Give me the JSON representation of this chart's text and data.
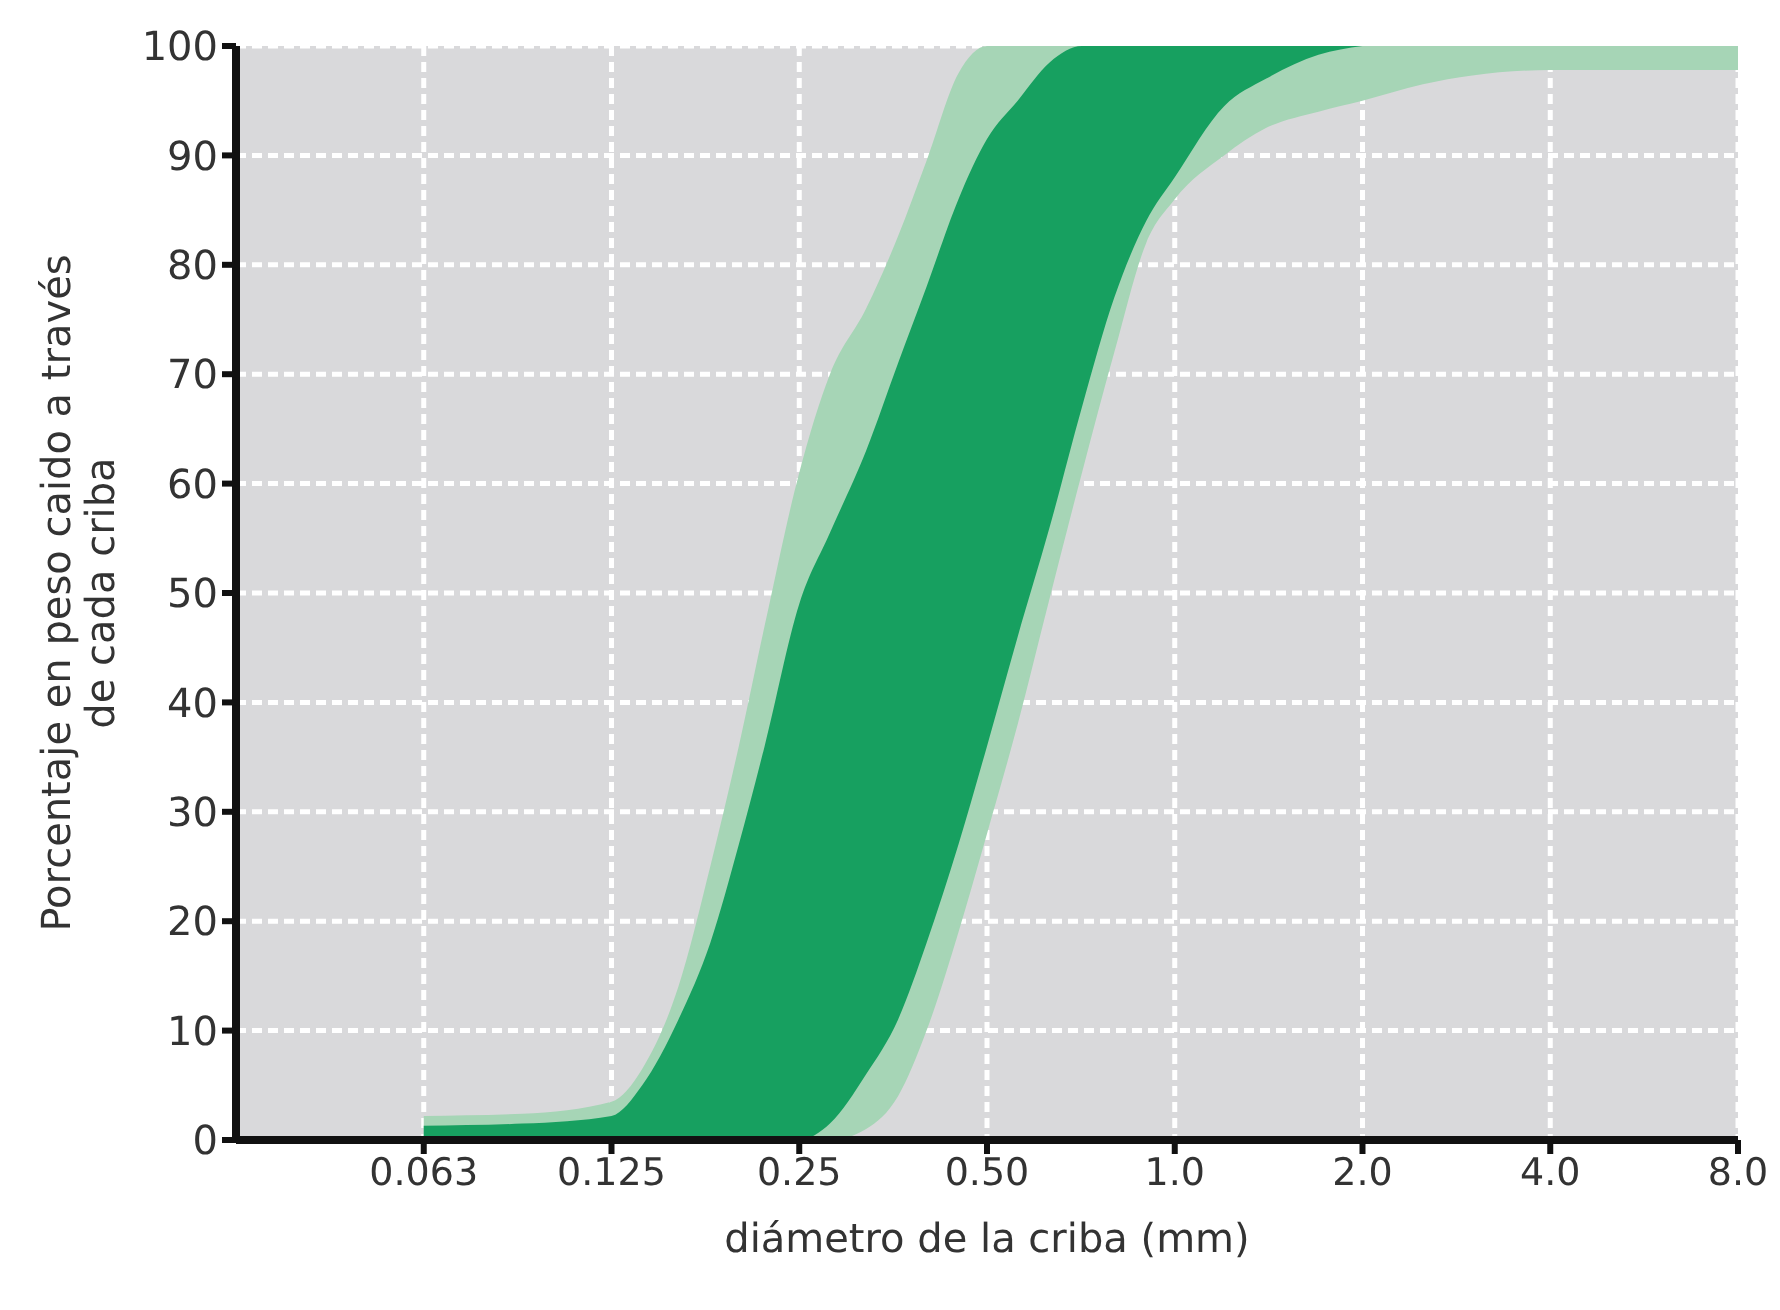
{
  "chart_data": {
    "type": "area",
    "xlabel": "diámetro de la criba (mm)",
    "ylabel": "Porcentaje en peso caido a través\nde cada criba",
    "log": "x",
    "xlim": [
      0.03125,
      8
    ],
    "xticks": [
      {
        "value": 0.0625,
        "label": "0.063"
      },
      0.125,
      0.25,
      {
        "value": 0.5,
        "label": "0.50"
      },
      {
        "value": 1,
        "label": "1.0"
      },
      {
        "value": 2,
        "label": "2.0"
      },
      {
        "value": 4,
        "label": "4.0"
      },
      {
        "value": 8,
        "label": "8.0"
      }
    ],
    "ylim": [
      0,
      100
    ],
    "yticks": [
      0,
      10,
      20,
      30,
      40,
      50,
      60,
      70,
      80,
      90,
      100
    ],
    "grid": true,
    "x": [
      0.0625,
      0.09,
      0.125,
      0.14,
      0.16,
      0.18,
      0.2,
      0.22,
      0.25,
      0.28,
      0.32,
      0.36,
      0.4,
      0.45,
      0.5,
      0.56,
      0.63,
      0.71,
      0.8,
      0.9,
      1.0,
      1.2,
      1.4,
      1.7,
      2.0,
      2.5,
      3.0,
      4.0,
      5.5,
      8.0
    ],
    "series": [
      {
        "color": "#a6d5b6",
        "values": [
          null,
          null,
          null,
          null,
          null,
          null,
          null,
          null,
          null,
          null,
          null,
          null,
          null,
          null,
          null,
          null,
          null,
          null,
          null,
          null,
          null,
          null,
          null,
          null,
          null,
          null,
          null,
          null,
          null,
          null
        ],
        "upper": [
          2.2,
          2.4,
          3.5,
          6.5,
          14,
          25,
          36,
          47,
          61,
          70,
          76,
          82.6,
          89.5,
          97.5,
          100,
          100,
          100,
          100,
          100,
          100,
          100,
          100,
          100,
          100,
          100,
          100,
          100,
          100,
          100,
          100
        ],
        "lower": [
          0,
          0,
          0,
          0,
          0,
          0,
          0,
          0,
          0,
          0,
          1,
          4,
          10,
          19,
          28,
          38,
          49.5,
          61,
          72,
          82,
          86,
          90,
          92.5,
          94,
          95,
          96.5,
          97.3,
          97.8,
          97.8,
          97.8
        ]
      },
      {
        "color": "#17a060",
        "values": [
          null,
          null,
          null,
          null,
          null,
          null,
          null,
          null,
          null,
          null,
          null,
          null,
          null,
          null,
          null,
          null,
          null,
          null,
          null,
          null,
          null,
          null,
          null,
          null,
          null,
          null,
          null,
          null,
          null,
          null
        ],
        "upper": [
          1.3,
          1.5,
          2.2,
          5,
          11,
          18,
          27,
          36,
          49,
          55.5,
          63,
          71,
          78,
          86,
          91.5,
          95,
          98.5,
          100,
          100,
          100,
          100,
          100,
          100,
          100,
          100,
          null,
          null,
          null,
          null,
          null
        ],
        "lower": [
          0,
          0,
          0,
          0,
          0,
          0,
          0,
          0,
          0,
          1.5,
          6,
          11,
          18,
          27,
          36,
          46,
          56,
          67,
          77,
          84,
          88,
          94.5,
          97,
          99.2,
          100,
          null,
          null,
          null,
          null,
          null
        ]
      }
    ]
  }
}
